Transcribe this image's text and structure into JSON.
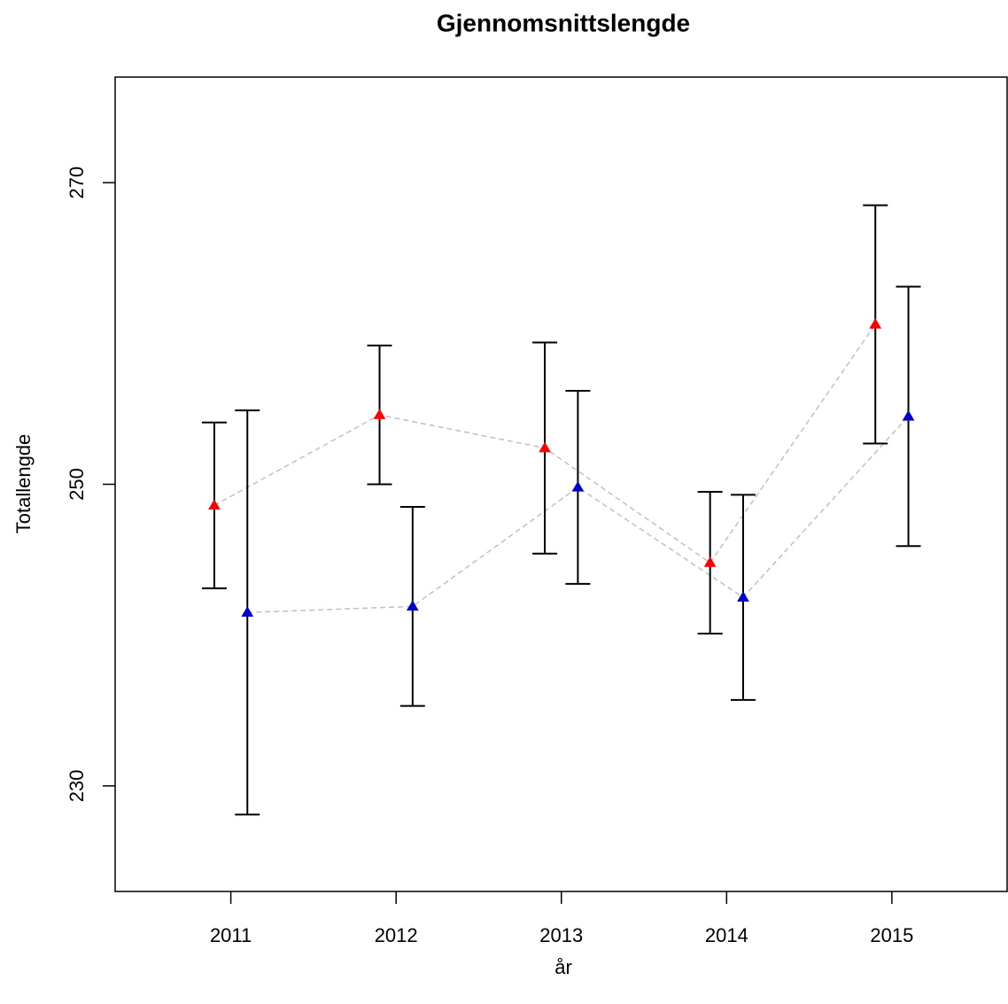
{
  "chart_data": {
    "type": "errorbar",
    "title": "Gjennomsnittslengde",
    "x_label": "år",
    "y_label": "Totallengde",
    "x": [
      2011,
      2012,
      2013,
      2014,
      2015
    ],
    "xlim": [
      2010.3,
      2015.7
    ],
    "xticks": [
      2011,
      2012,
      2013,
      2014,
      2015
    ],
    "ylim": [
      223,
      277
    ],
    "yticks": [
      230,
      250,
      270
    ],
    "series": [
      {
        "color": "#ff0000",
        "values": [
          248.6,
          254.6,
          252.4,
          244.8,
          260.6
        ],
        "errors": [
          5.5,
          4.6,
          7.0,
          4.7,
          7.9
        ]
      },
      {
        "color": "#0000cd",
        "values": [
          241.5,
          241.9,
          249.8,
          242.5,
          254.5
        ],
        "errors": [
          13.4,
          6.6,
          6.4,
          6.8,
          8.6
        ]
      }
    ]
  }
}
